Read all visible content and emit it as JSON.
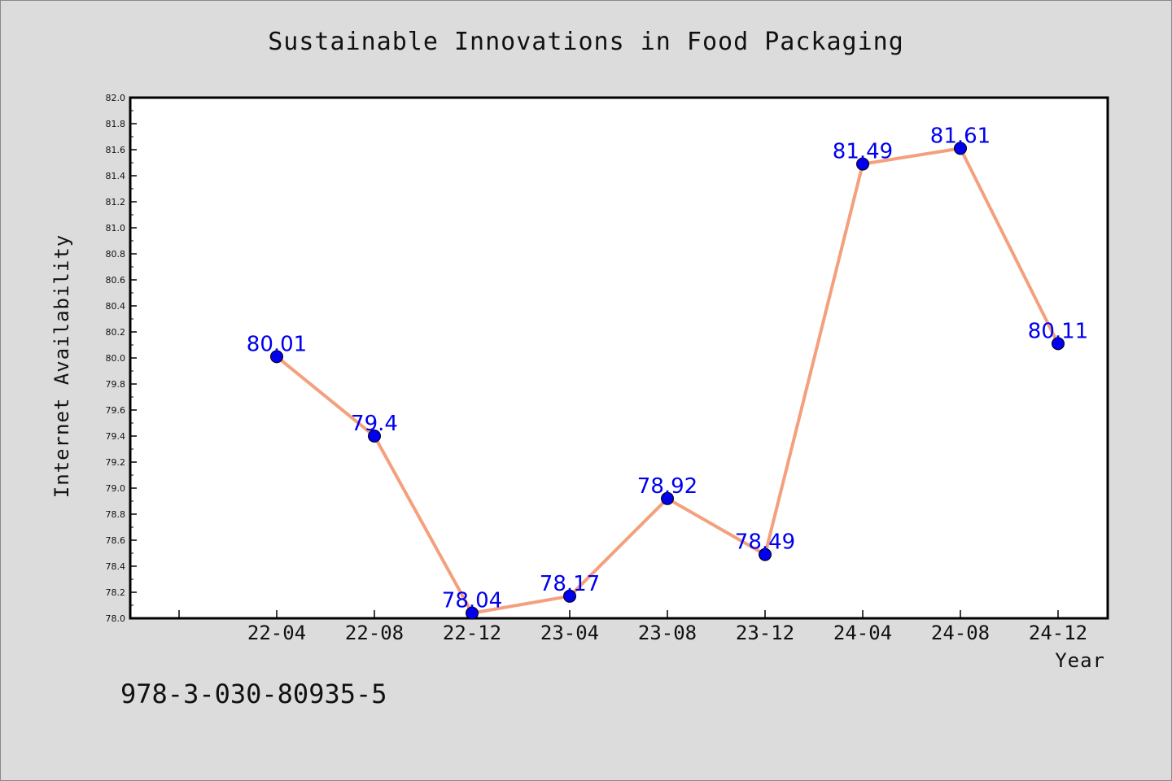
{
  "chart_data": {
    "type": "line",
    "title": "Sustainable Innovations in Food Packaging",
    "xlabel": "Year",
    "ylabel": "Internet Availability",
    "categories": [
      "22-04",
      "22-08",
      "22-12",
      "23-04",
      "23-08",
      "23-12",
      "24-04",
      "24-08",
      "24-12"
    ],
    "values": [
      80.01,
      79.4,
      78.04,
      78.17,
      78.92,
      78.49,
      81.49,
      81.61,
      80.11
    ],
    "data_labels": [
      "80.01",
      "79.4",
      "78.04",
      "78.17",
      "78.92",
      "78.49",
      "81.49",
      "81.61",
      "80.11"
    ],
    "ylim": [
      78.0,
      82.0
    ],
    "y_ticks": [
      "78.0",
      "78.2",
      "78.4",
      "78.6",
      "78.8",
      "79.0",
      "79.2",
      "79.4",
      "79.6",
      "79.8",
      "80.0",
      "80.2",
      "80.4",
      "80.6",
      "80.8",
      "81.0",
      "81.2",
      "81.4",
      "81.6",
      "81.8",
      "82.0"
    ],
    "grid": false,
    "line_color": "#f4a07e",
    "marker_color": "#0000ee",
    "label_color": "#0000ee",
    "background": "#dcdcdc",
    "plot_background": "#ffffff"
  },
  "footer": {
    "isbn": "978-3-030-80935-5"
  }
}
